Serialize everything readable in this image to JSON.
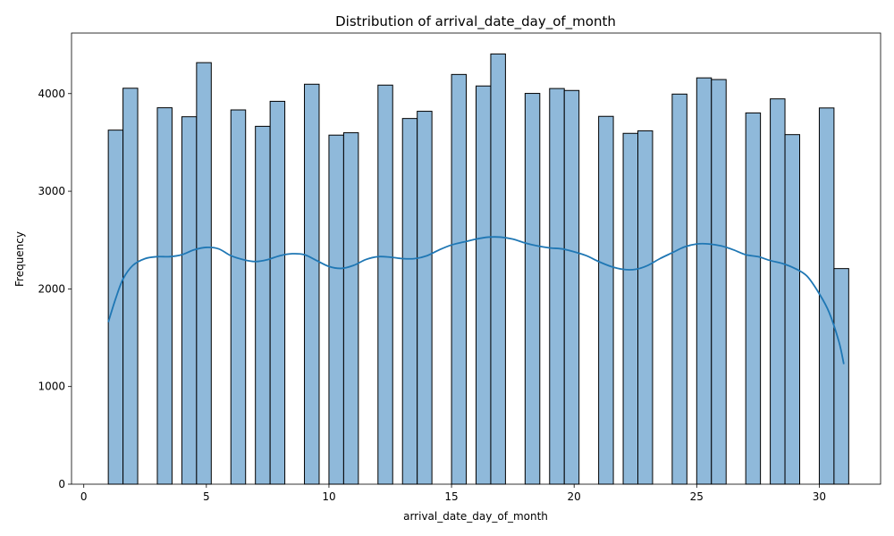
{
  "chart_data": {
    "type": "bar",
    "subtype": "histogram",
    "title": "Distribution of arrival_date_day_of_month",
    "xlabel": "arrival_date_day_of_month",
    "ylabel": "Frequency",
    "xlim": [
      -0.5,
      32.5
    ],
    "ylim": [
      0,
      4620
    ],
    "xticks": [
      0,
      5,
      10,
      15,
      20,
      25,
      30
    ],
    "yticks": [
      0,
      1000,
      2000,
      3000,
      4000
    ],
    "bar_color": "#8fb9da",
    "line_color": "#1f77b4",
    "bins": [
      {
        "x0": 1.0,
        "x1": 1.6,
        "value": 3626
      },
      {
        "x0": 1.6,
        "x1": 2.2,
        "value": 4055
      },
      {
        "x0": 3.0,
        "x1": 3.6,
        "value": 3855
      },
      {
        "x0": 4.0,
        "x1": 4.6,
        "value": 3763
      },
      {
        "x0": 4.6,
        "x1": 5.2,
        "value": 4317
      },
      {
        "x0": 6.0,
        "x1": 6.6,
        "value": 3833
      },
      {
        "x0": 7.0,
        "x1": 7.6,
        "value": 3665
      },
      {
        "x0": 7.6,
        "x1": 8.2,
        "value": 3921
      },
      {
        "x0": 9.0,
        "x1": 9.6,
        "value": 4096
      },
      {
        "x0": 10.0,
        "x1": 10.6,
        "value": 3575
      },
      {
        "x0": 10.6,
        "x1": 11.2,
        "value": 3599
      },
      {
        "x0": 12.0,
        "x1": 12.6,
        "value": 4087
      },
      {
        "x0": 13.0,
        "x1": 13.6,
        "value": 3745
      },
      {
        "x0": 13.6,
        "x1": 14.2,
        "value": 3819
      },
      {
        "x0": 15.0,
        "x1": 15.6,
        "value": 4196
      },
      {
        "x0": 16.0,
        "x1": 16.6,
        "value": 4078
      },
      {
        "x0": 16.6,
        "x1": 17.2,
        "value": 4406
      },
      {
        "x0": 18.0,
        "x1": 18.6,
        "value": 4002
      },
      {
        "x0": 19.0,
        "x1": 19.6,
        "value": 4052
      },
      {
        "x0": 19.6,
        "x1": 20.2,
        "value": 4032
      },
      {
        "x0": 21.0,
        "x1": 21.6,
        "value": 3767
      },
      {
        "x0": 22.0,
        "x1": 22.6,
        "value": 3593
      },
      {
        "x0": 22.6,
        "x1": 23.2,
        "value": 3619
      },
      {
        "x0": 24.0,
        "x1": 24.6,
        "value": 3995
      },
      {
        "x0": 25.0,
        "x1": 25.6,
        "value": 4161
      },
      {
        "x0": 25.6,
        "x1": 26.2,
        "value": 4144
      },
      {
        "x0": 27.0,
        "x1": 27.6,
        "value": 3802
      },
      {
        "x0": 28.0,
        "x1": 28.6,
        "value": 3946
      },
      {
        "x0": 28.6,
        "x1": 29.2,
        "value": 3580
      },
      {
        "x0": 30.0,
        "x1": 30.6,
        "value": 3853
      },
      {
        "x0": 30.6,
        "x1": 31.2,
        "value": 2208
      }
    ],
    "kde": {
      "x": [
        1.0,
        1.3,
        1.6,
        2.0,
        2.5,
        3.0,
        3.5,
        4.0,
        4.5,
        5.0,
        5.5,
        6.0,
        6.5,
        7.0,
        7.5,
        8.0,
        8.5,
        9.0,
        9.5,
        10.0,
        10.5,
        11.0,
        11.5,
        12.0,
        12.5,
        13.0,
        13.5,
        14.0,
        14.5,
        15.0,
        15.5,
        16.0,
        16.5,
        17.0,
        17.5,
        18.0,
        18.5,
        19.0,
        19.5,
        20.0,
        20.5,
        21.0,
        21.5,
        22.0,
        22.5,
        23.0,
        23.5,
        24.0,
        24.5,
        25.0,
        25.5,
        26.0,
        26.5,
        27.0,
        27.5,
        28.0,
        28.5,
        29.0,
        29.5,
        30.0,
        30.4,
        30.8,
        31.0
      ],
      "y": [
        1660,
        1900,
        2100,
        2240,
        2310,
        2330,
        2330,
        2350,
        2400,
        2425,
        2410,
        2340,
        2300,
        2280,
        2300,
        2340,
        2360,
        2350,
        2290,
        2230,
        2210,
        2240,
        2300,
        2330,
        2325,
        2310,
        2310,
        2340,
        2400,
        2450,
        2480,
        2510,
        2530,
        2530,
        2510,
        2470,
        2440,
        2420,
        2410,
        2380,
        2340,
        2280,
        2230,
        2200,
        2200,
        2240,
        2310,
        2370,
        2430,
        2460,
        2460,
        2440,
        2400,
        2350,
        2330,
        2290,
        2260,
        2210,
        2130,
        1950,
        1760,
        1460,
        1230
      ]
    }
  }
}
